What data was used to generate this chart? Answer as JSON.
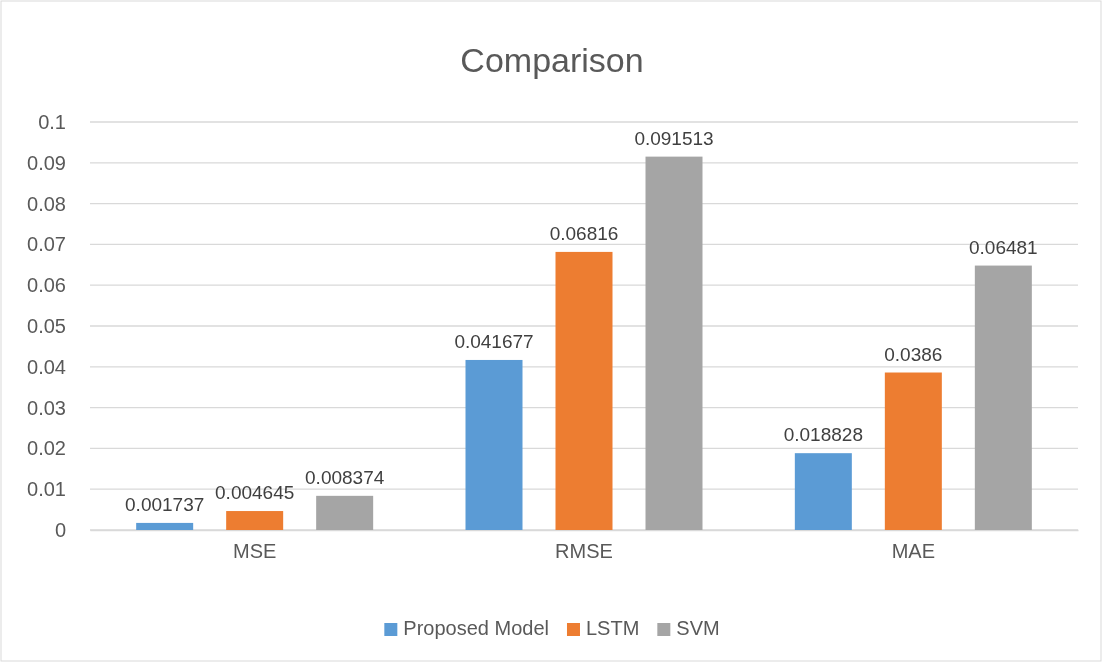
{
  "chart_data": {
    "type": "bar",
    "title": "Comparison",
    "categories": [
      "MSE",
      "RMSE",
      "MAE"
    ],
    "series": [
      {
        "name": "Proposed Model",
        "color": "#5b9bd5",
        "values": [
          0.001737,
          0.041677,
          0.018828
        ]
      },
      {
        "name": "LSTM",
        "color": "#ed7d31",
        "values": [
          0.004645,
          0.06816,
          0.0386
        ]
      },
      {
        "name": "SVM",
        "color": "#a5a5a5",
        "values": [
          0.008374,
          0.091513,
          0.06481
        ]
      }
    ],
    "ylim": [
      0,
      0.1
    ],
    "yticks": [
      0,
      0.01,
      0.02,
      0.03,
      0.04,
      0.05,
      0.06,
      0.07,
      0.08,
      0.09,
      0.1
    ],
    "grid": "y",
    "legend": "bottom",
    "data_labels": true
  }
}
